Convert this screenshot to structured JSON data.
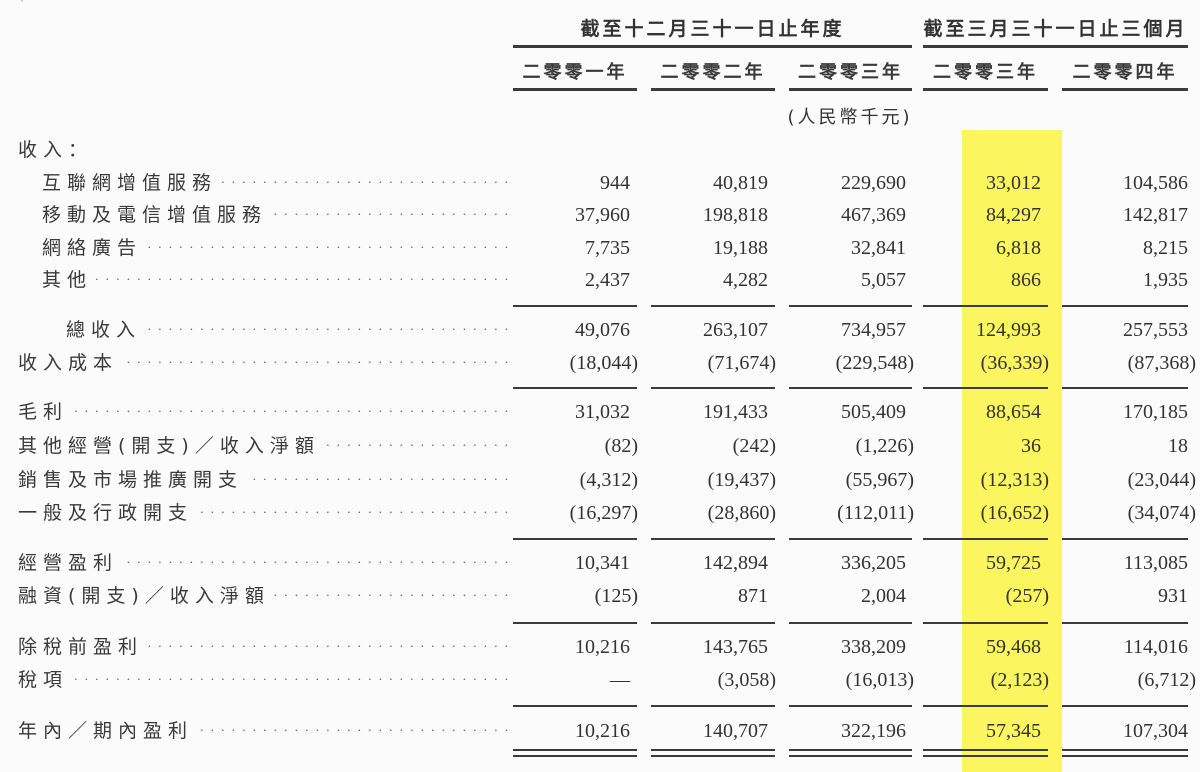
{
  "header": {
    "span_annual": "截至十二月三十一日止年度",
    "span_quarter": "截至三月三十一日止三個月",
    "columns": [
      "二零零一年",
      "二零零二年",
      "二零零三年",
      "二零零三年",
      "二零零四年"
    ],
    "unit": "(人民幣千元)",
    "highlighted_column_index": 3,
    "highlight_color": "#fbf55f"
  },
  "rows": [
    {
      "label": "收入：",
      "indent": 0,
      "leader": false,
      "values": [
        "",
        "",
        "",
        "",
        ""
      ]
    },
    {
      "label": "互聯網增值服務",
      "indent": 1,
      "leader": true,
      "values": [
        "944",
        "40,819",
        "229,690",
        "33,012",
        "104,586"
      ]
    },
    {
      "label": "移動及電信增值服務",
      "indent": 1,
      "leader": true,
      "values": [
        "37,960",
        "198,818",
        "467,369",
        "84,297",
        "142,817"
      ]
    },
    {
      "label": "網絡廣告",
      "indent": 1,
      "leader": true,
      "values": [
        "7,735",
        "19,188",
        "32,841",
        "6,818",
        "8,215"
      ]
    },
    {
      "label": "其他",
      "indent": 1,
      "leader": true,
      "values": [
        "2,437",
        "4,282",
        "5,057",
        "866",
        "1,935"
      ]
    },
    {
      "label": "總收入",
      "indent": 2,
      "leader": true,
      "values": [
        "49,076",
        "263,107",
        "734,957",
        "124,993",
        "257,553"
      ]
    },
    {
      "label": "收入成本",
      "indent": 0,
      "leader": true,
      "values": [
        "(18,044)",
        "(71,674)",
        "(229,548)",
        "(36,339)",
        "(87,368)"
      ]
    },
    {
      "label": "毛利",
      "indent": 0,
      "leader": true,
      "values": [
        "31,032",
        "191,433",
        "505,409",
        "88,654",
        "170,185"
      ]
    },
    {
      "label": "其他經營(開支)／收入淨額",
      "indent": 0,
      "leader": true,
      "values": [
        "(82)",
        "(242)",
        "(1,226)",
        "36",
        "18"
      ]
    },
    {
      "label": "銷售及市場推廣開支",
      "indent": 0,
      "leader": true,
      "values": [
        "(4,312)",
        "(19,437)",
        "(55,967)",
        "(12,313)",
        "(23,044)"
      ]
    },
    {
      "label": "一般及行政開支",
      "indent": 0,
      "leader": true,
      "values": [
        "(16,297)",
        "(28,860)",
        "(112,011)",
        "(16,652)",
        "(34,074)"
      ]
    },
    {
      "label": "經營盈利",
      "indent": 0,
      "leader": true,
      "values": [
        "10,341",
        "142,894",
        "336,205",
        "59,725",
        "113,085"
      ]
    },
    {
      "label": "融資(開支)／收入淨額",
      "indent": 0,
      "leader": true,
      "values": [
        "(125)",
        "871",
        "2,004",
        "(257)",
        "931"
      ]
    },
    {
      "label": "除稅前盈利",
      "indent": 0,
      "leader": true,
      "values": [
        "10,216",
        "143,765",
        "338,209",
        "59,468",
        "114,016"
      ]
    },
    {
      "label": "稅項",
      "indent": 0,
      "leader": true,
      "values": [
        "—",
        "(3,058)",
        "(16,013)",
        "(2,123)",
        "(6,712)"
      ]
    },
    {
      "label": "年內／期內盈利",
      "indent": 0,
      "leader": true,
      "values": [
        "10,216",
        "140,707",
        "322,196",
        "57,345",
        "107,304"
      ]
    }
  ]
}
